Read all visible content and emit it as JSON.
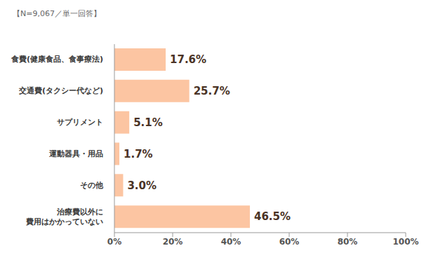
{
  "chart_data": {
    "type": "bar",
    "title": "【N=9,067／単一回答】",
    "orientation": "horizontal",
    "categories": [
      "食費(健康食品、食事療法)",
      "交通費(タクシー代など)",
      "サプリメント",
      "運動器具・用品",
      "その他",
      "治療費以外に\n費用はかかっていない"
    ],
    "values": [
      17.6,
      25.7,
      5.1,
      1.7,
      3.0,
      46.5
    ],
    "value_labels": [
      "17.6%",
      "25.7%",
      "5.1%",
      "1.7%",
      "3.0%",
      "46.5%"
    ],
    "data_labels": true,
    "color": "#fcc5a2",
    "xlim": [
      0,
      100
    ],
    "xticks": [
      {
        "value": 0,
        "label": "0%"
      },
      {
        "value": 20,
        "label": "20%"
      },
      {
        "value": 40,
        "label": "40%"
      },
      {
        "value": 60,
        "label": "60%"
      },
      {
        "value": 80,
        "label": "80%"
      },
      {
        "value": 100,
        "label": "100%"
      }
    ],
    "grid": false
  }
}
